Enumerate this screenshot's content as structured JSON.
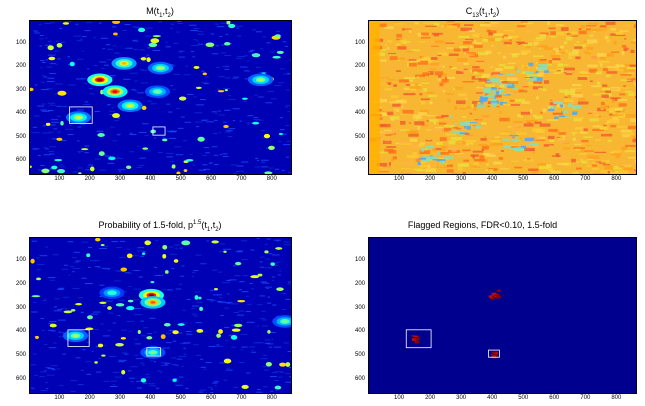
{
  "figure": {
    "panels": [
      {
        "id": "m",
        "title_main": "M(t",
        "title_sub1": "1",
        "title_mid": ",t",
        "title_sub2": "2",
        "title_end": ")",
        "colormap": "blue",
        "highlight_boxes": [
          {
            "x0": 130,
            "x1": 205,
            "y0": 365,
            "y1": 435
          },
          {
            "x0": 405,
            "x1": 445,
            "y0": 450,
            "y1": 485
          }
        ]
      },
      {
        "id": "c13",
        "title_main": "C",
        "title_sub1": "13",
        "title_mid": "(t",
        "title_sub2": "1",
        "title_end": ",t",
        "title_sub3": "2",
        "title_end2": ")",
        "colormap": "warm",
        "highlight_boxes": []
      },
      {
        "id": "prob",
        "title_main": "Probability of 1.5-fold, p",
        "title_sup": "1.5",
        "title_mid": "(t",
        "title_sub1": "1",
        "title_mid2": ",t",
        "title_sub2": "2",
        "title_end": ")",
        "colormap": "blue",
        "highlight_boxes": [
          {
            "x0": 125,
            "x1": 195,
            "y0": 385,
            "y1": 455
          },
          {
            "x0": 385,
            "x1": 430,
            "y0": 460,
            "y1": 495
          }
        ]
      },
      {
        "id": "flagged",
        "title_text": "Flagged Regions, FDR<0.10, 1.5-fold",
        "colormap": "flag",
        "highlight_boxes": [
          {
            "x0": 120,
            "x1": 200,
            "y0": 385,
            "y1": 460
          },
          {
            "x0": 385,
            "x1": 420,
            "y0": 470,
            "y1": 500
          }
        ]
      }
    ]
  },
  "chart_data": [
    {
      "type": "heatmap",
      "title": "M(t1,t2)",
      "xlim": [
        0,
        860
      ],
      "ylim": [
        650,
        0
      ],
      "xticks": [
        "100",
        "200",
        "300",
        "400",
        "500",
        "600",
        "700",
        "800"
      ],
      "yticks": [
        "100",
        "200",
        "300",
        "400",
        "500",
        "600"
      ],
      "hotspots": [
        {
          "x": 230,
          "y": 250,
          "v": 1.0
        },
        {
          "x": 280,
          "y": 300,
          "v": 0.9
        },
        {
          "x": 310,
          "y": 180,
          "v": 0.7
        },
        {
          "x": 430,
          "y": 200,
          "v": 0.55
        },
        {
          "x": 160,
          "y": 410,
          "v": 0.6
        },
        {
          "x": 760,
          "y": 250,
          "v": 0.55
        },
        {
          "x": 330,
          "y": 360,
          "v": 0.6
        },
        {
          "x": 420,
          "y": 300,
          "v": 0.5
        }
      ]
    },
    {
      "type": "heatmap",
      "title": "C13(t1,t2)",
      "xlim": [
        0,
        860
      ],
      "ylim": [
        650,
        0
      ],
      "xticks": [
        "100",
        "200",
        "300",
        "400",
        "500",
        "600",
        "700",
        "800"
      ],
      "yticks": [
        "100",
        "200",
        "300",
        "400",
        "500",
        "600"
      ]
    },
    {
      "type": "heatmap",
      "title": "Probability of 1.5-fold, p1.5(t1,t2)",
      "xlim": [
        0,
        860
      ],
      "ylim": [
        650,
        0
      ],
      "xticks": [
        "100",
        "200",
        "300",
        "400",
        "500",
        "600",
        "700",
        "800"
      ],
      "yticks": [
        "100",
        "200",
        "300",
        "400",
        "500",
        "600"
      ],
      "hotspots": [
        {
          "x": 400,
          "y": 240,
          "v": 1.0
        },
        {
          "x": 405,
          "y": 270,
          "v": 0.8
        },
        {
          "x": 150,
          "y": 410,
          "v": 0.55
        },
        {
          "x": 405,
          "y": 480,
          "v": 0.5
        },
        {
          "x": 840,
          "y": 350,
          "v": 0.5
        },
        {
          "x": 270,
          "y": 230,
          "v": 0.45
        }
      ]
    },
    {
      "type": "heatmap",
      "title": "Flagged Regions, FDR<0.10, 1.5-fold",
      "xlim": [
        0,
        860
      ],
      "ylim": [
        650,
        0
      ],
      "xticks": [
        "100",
        "200",
        "300",
        "400",
        "500",
        "600",
        "700",
        "800"
      ],
      "yticks": [
        "100",
        "200",
        "300",
        "400",
        "500",
        "600"
      ],
      "flagged": [
        {
          "x": 400,
          "y": 235,
          "v": 1.0
        },
        {
          "x": 145,
          "y": 420,
          "v": 0.6
        },
        {
          "x": 400,
          "y": 485,
          "v": 0.5
        }
      ]
    }
  ]
}
